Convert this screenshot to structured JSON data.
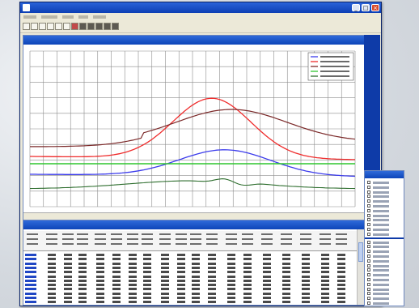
{
  "colors": {
    "red": "#ef2b2b",
    "brown": "#7c2a2a",
    "blue": "#3c3cec",
    "green": "#2fc52f",
    "dark_green": "#2e6e2e",
    "title_blue": "#0c3fb4",
    "panel_blue": "#0e3ba8"
  },
  "icons": {
    "app": "app-icon",
    "minimize": "minimize-icon",
    "maximize": "maximize-icon",
    "close": "close-icon"
  }
}
